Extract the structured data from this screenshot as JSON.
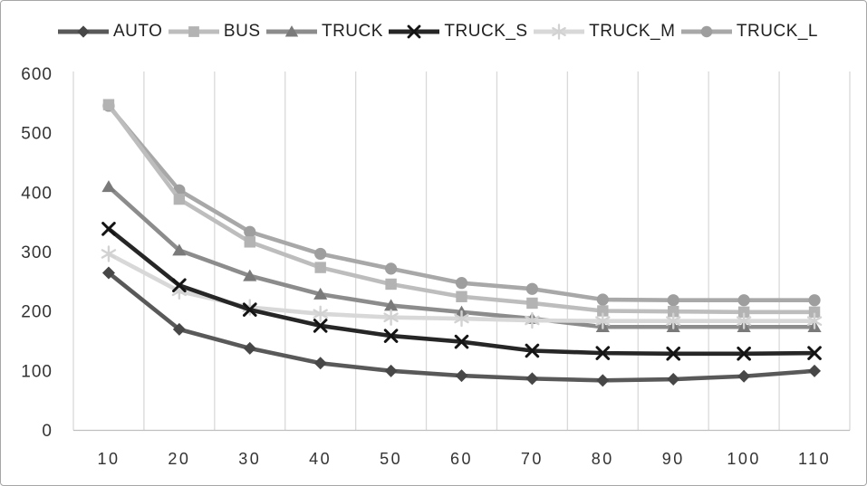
{
  "chart_data": {
    "type": "line",
    "title": "",
    "xlabel": "",
    "ylabel": "",
    "x": [
      10,
      20,
      30,
      40,
      50,
      60,
      70,
      80,
      90,
      100,
      110
    ],
    "series": [
      {
        "name": "AUTO",
        "marker": "diamond",
        "line_color": "#595959",
        "marker_color": "#474747",
        "values": [
          265,
          170,
          138,
          113,
          100,
          92,
          87,
          84,
          86,
          91,
          100
        ]
      },
      {
        "name": "BUS",
        "marker": "square",
        "line_color": "#bdbdbd",
        "marker_color": "#b3b3b3",
        "values": [
          548,
          389,
          317,
          274,
          246,
          225,
          214,
          201,
          200,
          199,
          199
        ]
      },
      {
        "name": "TRUCK",
        "marker": "triangle",
        "line_color": "#8c8c8c",
        "marker_color": "#7a7a7a",
        "values": [
          410,
          303,
          260,
          229,
          210,
          199,
          188,
          174,
          174,
          174,
          174
        ]
      },
      {
        "name": "TRUCK_S",
        "marker": "x",
        "line_color": "#262626",
        "marker_color": "#141414",
        "values": [
          339,
          244,
          203,
          176,
          159,
          149,
          134,
          130,
          129,
          129,
          130
        ]
      },
      {
        "name": "TRUCK_M",
        "marker": "asterisk",
        "line_color": "#d8d8d8",
        "marker_color": "#d2d2d2",
        "values": [
          297,
          234,
          207,
          196,
          190,
          188,
          185,
          184,
          184,
          184,
          184
        ]
      },
      {
        "name": "TRUCK_L",
        "marker": "circle",
        "line_color": "#a8a8a8",
        "marker_color": "#9e9e9e",
        "values": [
          546,
          404,
          334,
          297,
          272,
          248,
          238,
          220,
          219,
          219,
          219
        ]
      }
    ],
    "ylim": [
      0,
      600
    ],
    "yticks": [
      0,
      100,
      200,
      300,
      400,
      500,
      600
    ],
    "grid": "vertical-only",
    "legend_position": "top",
    "draw_order": [
      "TRUCK_L",
      "BUS",
      "TRUCK",
      "TRUCK_M",
      "TRUCK_S",
      "AUTO"
    ]
  },
  "colors": {
    "background": "#ffffff",
    "border": "#a6a6a6",
    "gridline": "#d9d9d9",
    "axis_line": "#bfbfbf",
    "tick_label": "#333333",
    "legend_label": "#212121"
  }
}
